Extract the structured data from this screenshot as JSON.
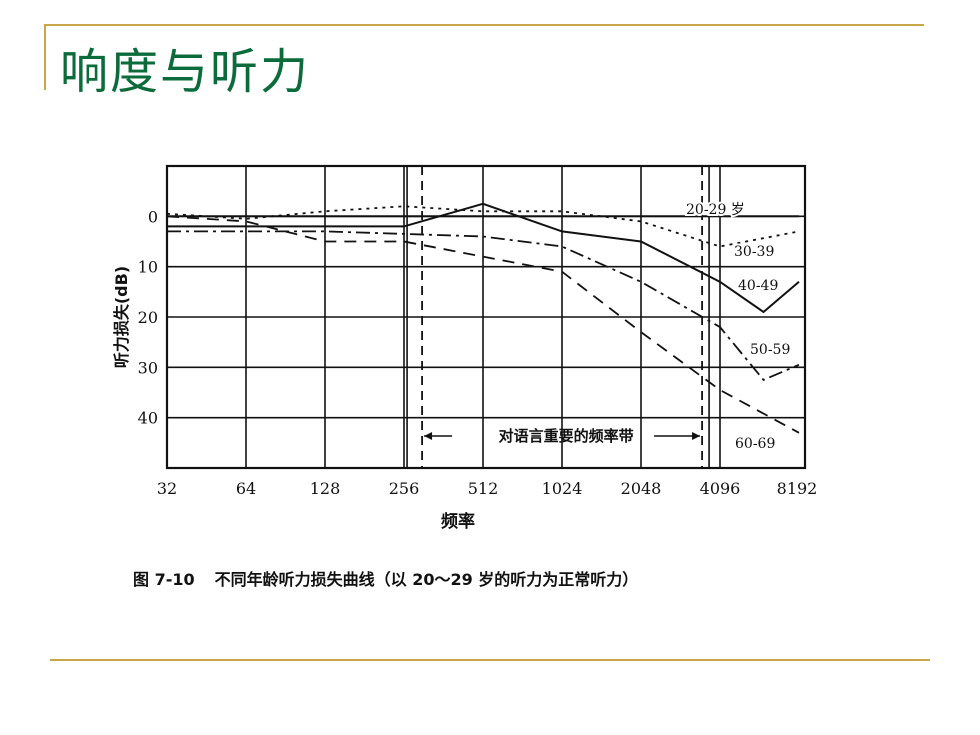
{
  "slide": {
    "title": "响度与听力",
    "caption_number": "图 7-10",
    "caption_text": "不同年龄听力损失曲线（以 20～29 岁的听力为正常听力）"
  },
  "chart_data": {
    "type": "line",
    "xlabel": "频率",
    "ylabel": "听力损失(dB)",
    "x_ticks": [
      "32",
      "64",
      "128",
      "256",
      "512",
      "1024",
      "2048",
      "4096",
      "8192"
    ],
    "x_scale": "log2",
    "y_ticks": [
      "0",
      "10",
      "20",
      "30",
      "40"
    ],
    "ylim": [
      -10,
      50
    ],
    "y_inverted": true,
    "speech_band": {
      "label": "对语言重要的频率带",
      "range": [
        300,
        3500
      ]
    },
    "series": [
      {
        "name": "20-29 岁",
        "style": "solid",
        "x": [
          32,
          8192
        ],
        "y": [
          0,
          0
        ]
      },
      {
        "name": "30-39",
        "style": "dotted",
        "x": [
          32,
          64,
          128,
          256,
          512,
          1024,
          2048,
          4096,
          8192
        ],
        "y": [
          -0.5,
          0.5,
          -1,
          -2,
          -1,
          -1,
          1,
          6,
          3
        ]
      },
      {
        "name": "40-49",
        "style": "solid",
        "x": [
          32,
          64,
          128,
          256,
          512,
          1024,
          2048,
          4096,
          6000,
          8192
        ],
        "y": [
          2,
          2,
          2,
          2,
          -2.5,
          3,
          5,
          13,
          19,
          13
        ]
      },
      {
        "name": "50-59",
        "style": "dash-dot",
        "x": [
          32,
          64,
          128,
          256,
          512,
          1024,
          2048,
          4096,
          6000,
          8192
        ],
        "y": [
          3,
          3,
          3,
          3.5,
          4,
          6,
          13,
          22,
          32.5,
          29.5
        ]
      },
      {
        "name": "60-69",
        "style": "dashed",
        "x": [
          32,
          64,
          128,
          256,
          512,
          1024,
          2048,
          4096,
          8192
        ],
        "y": [
          0,
          1,
          5,
          5,
          8,
          11,
          23,
          34.5,
          43
        ]
      }
    ]
  }
}
